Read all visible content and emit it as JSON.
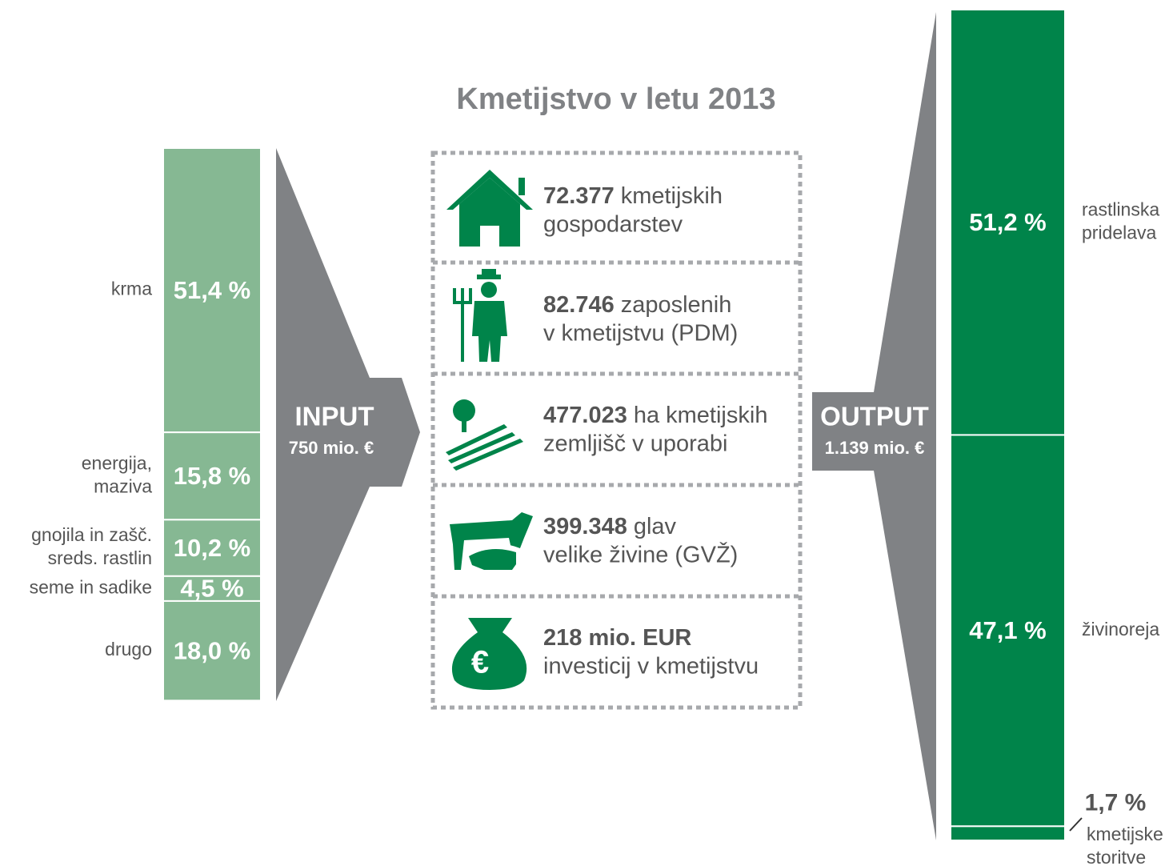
{
  "title": "Kmetijstvo v letu 2013",
  "input": {
    "label": "INPUT",
    "amount": "750 mio. €",
    "categories": [
      [
        "krma"
      ],
      [
        "energija,",
        "maziva"
      ],
      [
        "gnojila in zašč.",
        "sreds. rastlin"
      ],
      [
        "seme in sadike"
      ],
      [
        "drugo"
      ]
    ],
    "values": [
      51.4,
      15.8,
      10.2,
      4.5,
      18.0
    ],
    "value_labels": [
      "51,4 %",
      "15,8 %",
      "10,2 %",
      "4,5 %",
      "18,0 %"
    ],
    "color": "#86b893"
  },
  "output": {
    "label": "OUTPUT",
    "amount": "1.139 mio. €",
    "categories": [
      [
        "rastlinska",
        "pridelava"
      ],
      [
        "živinoreja"
      ],
      [
        "kmetijske",
        "storitve"
      ]
    ],
    "values": [
      51.2,
      47.1,
      1.7
    ],
    "value_labels": [
      "51,2 %",
      "47,1 %",
      "1,7 %"
    ],
    "color": "#00844a"
  },
  "stats": [
    {
      "number": "72.377",
      "text": [
        "kmetijskih",
        "gospodarstev"
      ]
    },
    {
      "number": "82.746",
      "text": [
        "zaposlenih",
        "v kmetijstvu (PDM)"
      ]
    },
    {
      "number": "477.023",
      "text": [
        "ha kmetijskih",
        "zemljišč v uporabi"
      ]
    },
    {
      "number": "399.348",
      "text": [
        "glav",
        "velike živine (GVŽ)"
      ]
    },
    {
      "number": "218 mio. EUR",
      "text": [
        "",
        "investicij v kmetijstvu"
      ]
    }
  ]
}
